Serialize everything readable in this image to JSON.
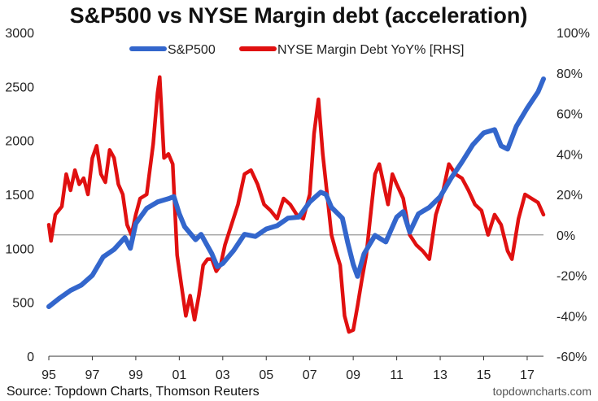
{
  "chart_data": {
    "type": "line",
    "title": "S&P500 vs NYSE Margin debt (acceleration)",
    "xlabel": "",
    "ylabel": "",
    "x_ticks": [
      "95",
      "97",
      "99",
      "01",
      "03",
      "05",
      "07",
      "09",
      "11",
      "13",
      "15",
      "17"
    ],
    "xlim": [
      1995.0,
      2017.75
    ],
    "y_left": {
      "ticks": [
        "0",
        "500",
        "1000",
        "1500",
        "2000",
        "2500",
        "3000"
      ],
      "range": [
        0,
        3000
      ]
    },
    "y_right": {
      "ticks": [
        "-60%",
        "-40%",
        "-20%",
        "0%",
        "20%",
        "40%",
        "60%",
        "80%",
        "100%"
      ],
      "range": [
        -60,
        100
      ]
    },
    "legend_position": "top",
    "series": [
      {
        "name": "S&P500",
        "axis": "left",
        "color": "#3366cc",
        "points": [
          [
            1995.0,
            460
          ],
          [
            1995.5,
            540
          ],
          [
            1996.0,
            610
          ],
          [
            1996.5,
            660
          ],
          [
            1997.0,
            750
          ],
          [
            1997.5,
            920
          ],
          [
            1998.0,
            990
          ],
          [
            1998.5,
            1100
          ],
          [
            1998.75,
            1000
          ],
          [
            1999.0,
            1230
          ],
          [
            1999.5,
            1370
          ],
          [
            2000.0,
            1430
          ],
          [
            2000.5,
            1460
          ],
          [
            2000.75,
            1480
          ],
          [
            2001.0,
            1320
          ],
          [
            2001.25,
            1200
          ],
          [
            2001.75,
            1080
          ],
          [
            2002.0,
            1130
          ],
          [
            2002.5,
            950
          ],
          [
            2002.75,
            830
          ],
          [
            2003.0,
            860
          ],
          [
            2003.5,
            980
          ],
          [
            2004.0,
            1130
          ],
          [
            2004.5,
            1110
          ],
          [
            2005.0,
            1180
          ],
          [
            2005.5,
            1210
          ],
          [
            2006.0,
            1280
          ],
          [
            2006.5,
            1290
          ],
          [
            2007.0,
            1430
          ],
          [
            2007.5,
            1520
          ],
          [
            2007.75,
            1500
          ],
          [
            2008.0,
            1380
          ],
          [
            2008.5,
            1280
          ],
          [
            2008.75,
            1050
          ],
          [
            2009.0,
            850
          ],
          [
            2009.2,
            740
          ],
          [
            2009.5,
            950
          ],
          [
            2010.0,
            1120
          ],
          [
            2010.5,
            1060
          ],
          [
            2011.0,
            1290
          ],
          [
            2011.3,
            1340
          ],
          [
            2011.6,
            1150
          ],
          [
            2012.0,
            1320
          ],
          [
            2012.5,
            1380
          ],
          [
            2013.0,
            1480
          ],
          [
            2013.5,
            1650
          ],
          [
            2014.0,
            1800
          ],
          [
            2014.5,
            1960
          ],
          [
            2015.0,
            2070
          ],
          [
            2015.5,
            2100
          ],
          [
            2015.8,
            1950
          ],
          [
            2016.1,
            1920
          ],
          [
            2016.5,
            2130
          ],
          [
            2017.0,
            2300
          ],
          [
            2017.5,
            2450
          ],
          [
            2017.75,
            2570
          ]
        ]
      },
      {
        "name": "NYSE Margin Debt YoY% [RHS]",
        "axis": "right",
        "color": "#e01010",
        "points": [
          [
            1995.0,
            5
          ],
          [
            1995.1,
            -3
          ],
          [
            1995.3,
            10
          ],
          [
            1995.6,
            14
          ],
          [
            1995.8,
            30
          ],
          [
            1996.0,
            22
          ],
          [
            1996.2,
            32
          ],
          [
            1996.4,
            25
          ],
          [
            1996.6,
            28
          ],
          [
            1996.8,
            20
          ],
          [
            1997.0,
            38
          ],
          [
            1997.2,
            44
          ],
          [
            1997.4,
            30
          ],
          [
            1997.6,
            26
          ],
          [
            1997.8,
            42
          ],
          [
            1998.0,
            38
          ],
          [
            1998.2,
            25
          ],
          [
            1998.4,
            20
          ],
          [
            1998.6,
            5
          ],
          [
            1998.8,
            0
          ],
          [
            1999.0,
            10
          ],
          [
            1999.2,
            18
          ],
          [
            1999.5,
            20
          ],
          [
            1999.8,
            45
          ],
          [
            2000.0,
            70
          ],
          [
            2000.1,
            78
          ],
          [
            2000.3,
            38
          ],
          [
            2000.5,
            40
          ],
          [
            2000.7,
            35
          ],
          [
            2000.9,
            -10
          ],
          [
            2001.1,
            -25
          ],
          [
            2001.3,
            -40
          ],
          [
            2001.5,
            -30
          ],
          [
            2001.7,
            -42
          ],
          [
            2001.9,
            -30
          ],
          [
            2002.1,
            -15
          ],
          [
            2002.3,
            -12
          ],
          [
            2002.5,
            -12
          ],
          [
            2002.7,
            -18
          ],
          [
            2002.9,
            -15
          ],
          [
            2003.1,
            -5
          ],
          [
            2003.4,
            5
          ],
          [
            2003.7,
            15
          ],
          [
            2004.0,
            30
          ],
          [
            2004.3,
            32
          ],
          [
            2004.6,
            25
          ],
          [
            2004.9,
            15
          ],
          [
            2005.2,
            12
          ],
          [
            2005.5,
            8
          ],
          [
            2005.8,
            18
          ],
          [
            2006.1,
            15
          ],
          [
            2006.4,
            10
          ],
          [
            2006.7,
            8
          ],
          [
            2007.0,
            20
          ],
          [
            2007.2,
            50
          ],
          [
            2007.4,
            67
          ],
          [
            2007.6,
            40
          ],
          [
            2007.8,
            20
          ],
          [
            2008.0,
            0
          ],
          [
            2008.2,
            -8
          ],
          [
            2008.4,
            -15
          ],
          [
            2008.6,
            -40
          ],
          [
            2008.8,
            -48
          ],
          [
            2009.0,
            -47
          ],
          [
            2009.2,
            -35
          ],
          [
            2009.4,
            -22
          ],
          [
            2009.6,
            -10
          ],
          [
            2009.8,
            10
          ],
          [
            2010.0,
            30
          ],
          [
            2010.2,
            35
          ],
          [
            2010.4,
            25
          ],
          [
            2010.6,
            15
          ],
          [
            2010.8,
            30
          ],
          [
            2011.0,
            25
          ],
          [
            2011.3,
            18
          ],
          [
            2011.6,
            0
          ],
          [
            2011.9,
            -5
          ],
          [
            2012.2,
            -8
          ],
          [
            2012.5,
            -12
          ],
          [
            2012.8,
            10
          ],
          [
            2013.1,
            20
          ],
          [
            2013.4,
            35
          ],
          [
            2013.7,
            30
          ],
          [
            2014.0,
            28
          ],
          [
            2014.3,
            22
          ],
          [
            2014.6,
            15
          ],
          [
            2014.9,
            12
          ],
          [
            2015.2,
            0
          ],
          [
            2015.5,
            10
          ],
          [
            2015.8,
            5
          ],
          [
            2016.1,
            -8
          ],
          [
            2016.3,
            -12
          ],
          [
            2016.6,
            8
          ],
          [
            2016.9,
            20
          ],
          [
            2017.2,
            18
          ],
          [
            2017.5,
            16
          ],
          [
            2017.75,
            10
          ]
        ]
      }
    ],
    "zero_line": {
      "axis": "right",
      "value": 0,
      "color": "#999999"
    }
  },
  "footer": {
    "source": "Source: Topdown Charts, Thomson Reuters",
    "watermark": "topdowncharts.com"
  }
}
